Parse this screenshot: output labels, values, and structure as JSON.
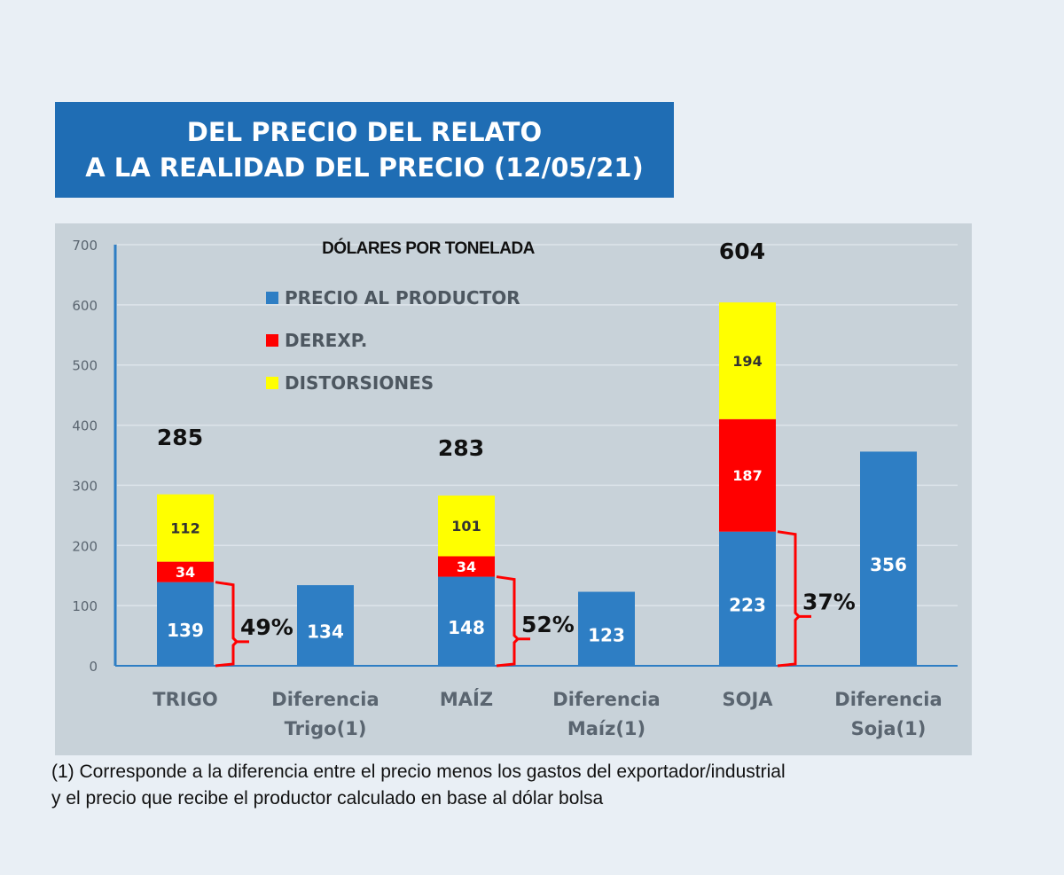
{
  "header": {
    "line1": "DEL PRECIO DEL RELATO",
    "line2": "A LA REALIDAD DEL  PRECIO (12/05/21)"
  },
  "chart_data": {
    "type": "bar",
    "stacked": true,
    "title": "DÓLARES POR TONELADA",
    "categories": [
      "TRIGO",
      "Diferencia Trigo(1)",
      "MAÍZ",
      "Diferencia Maíz(1)",
      "SOJA",
      "Diferencia Soja(1)"
    ],
    "category_lines": [
      [
        "TRIGO"
      ],
      [
        "Diferencia",
        "Trigo(1)"
      ],
      [
        "MAÍZ"
      ],
      [
        "Diferencia",
        "Maíz(1)"
      ],
      [
        "SOJA"
      ],
      [
        "Diferencia",
        "Soja(1)"
      ]
    ],
    "series": [
      {
        "name": "PRECIO AL PRODUCTOR",
        "color": "#2e7ec4",
        "label_color": "#ffffff",
        "values": [
          139,
          134,
          148,
          123,
          223,
          356
        ]
      },
      {
        "name": "DEREXP.",
        "color": "#ff0000",
        "label_color": "#ffffff",
        "values": [
          34,
          null,
          34,
          null,
          187,
          null
        ]
      },
      {
        "name": "DISTORSIONES",
        "color": "#ffff00",
        "label_color": "#333333",
        "values": [
          112,
          null,
          101,
          null,
          194,
          null
        ]
      }
    ],
    "totals": [
      {
        "category": "TRIGO",
        "value": "285"
      },
      {
        "category": "MAÍZ",
        "value": "283"
      },
      {
        "category": "SOJA",
        "value": "604"
      }
    ],
    "annotations": [
      {
        "category": "TRIGO",
        "text": "49%"
      },
      {
        "category": "MAÍZ",
        "text": "52%"
      },
      {
        "category": "SOJA",
        "text": "37%"
      }
    ],
    "ylim": [
      0,
      700
    ],
    "yticks": [
      0,
      100,
      200,
      300,
      400,
      500,
      600,
      700
    ],
    "grid": true,
    "legend_position": "top-left inside",
    "bracket_color": "#ff0000"
  },
  "footnote": {
    "line1": "(1)   Corresponde a la diferencia entre el precio menos los gastos del exportador/industrial",
    "line2": "y el precio que recibe el productor calculado en base al dólar bolsa"
  }
}
